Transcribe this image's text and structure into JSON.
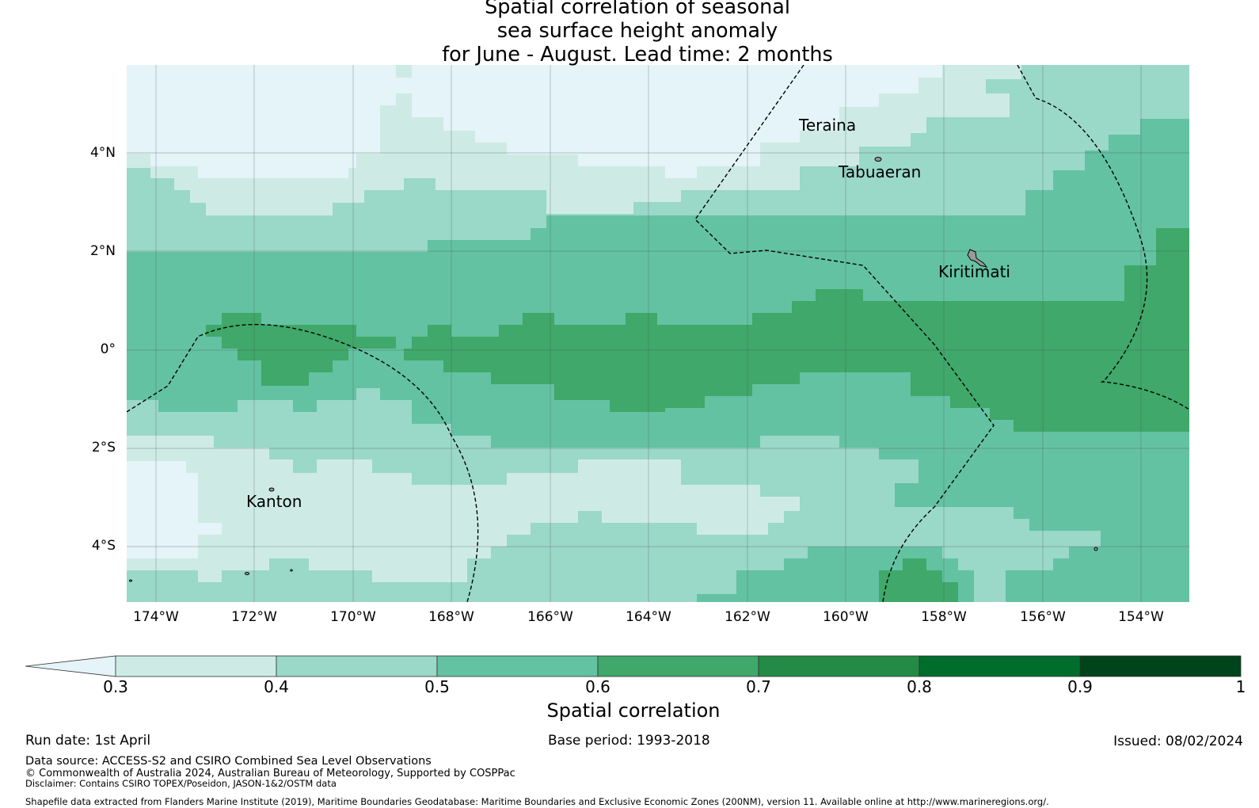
{
  "map": {
    "title": "Spatial correlation of seasonal\nsea surface height anomaly\nfor June - August. Lead time: 2 months",
    "lat_labels": [
      "4°N",
      "2°N",
      "0°",
      "2°S",
      "4°S"
    ],
    "lon_labels": [
      "174°W",
      "172°W",
      "170°W",
      "168°W",
      "166°W",
      "164°W",
      "162°W",
      "160°W",
      "158°W",
      "156°W",
      "154°W"
    ],
    "places": [
      "Teraina",
      "Tabuaeran",
      "Kiritimati",
      "Kanton"
    ],
    "field_colors": {
      "lt_0.3": "#e4f4f8",
      "0.3_0.4": "#cdebe4",
      "0.4_0.5": "#9ad8c8",
      "0.5_0.6": "#63c2a2",
      "0.6_0.7": "#3fa86a"
    },
    "land_color": "#999999",
    "boundary_style": "dashed"
  },
  "colorbar": {
    "label": "Spatial correlation",
    "ticks": [
      "0.3",
      "0.4",
      "0.5",
      "0.6",
      "0.7",
      "0.8",
      "0.9",
      "1"
    ],
    "colors": [
      "#cdebe4",
      "#9ad8c8",
      "#63c2a2",
      "#3fa86a",
      "#238b45",
      "#006d2c",
      "#00441b"
    ],
    "extend_color": "#e4f4f8"
  },
  "footer": {
    "run_date": "Run date: 1st April",
    "base_period": "Base period: 1993-2018",
    "issued": "Issued: 08/02/2024",
    "data_source": "Data source: ACCESS-S2 and CSIRO Combined Sea Level Observations",
    "copyright": "© Commonwealth of Australia 2024, Australian Bureau of Meteorology, Supported by COSPPac",
    "disclaimer": "Disclaimer: Contains CSIRO TOPEX/Poseidon, JASON-1&2/OSTM data",
    "shapefile": "Shapefile data extracted from Flanders Marine Institute (2019), Maritime Boundaries Geodatabase: Maritime Boundaries and Exclusive Economic Zones (200NM), version 11. Available online at http://www.marineregions.org/."
  }
}
